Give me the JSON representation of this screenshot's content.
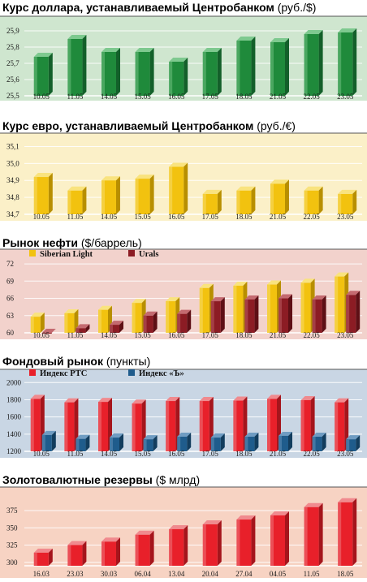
{
  "chart_data": [
    {
      "type": "bar",
      "title": "Курс доллара, устанавливаемый Центробанком",
      "unit": "(руб./$)",
      "categories": [
        "10.05",
        "11.05",
        "14.05",
        "15.05",
        "16.05",
        "17.05",
        "18.05",
        "21.05",
        "22.05",
        "23.05"
      ],
      "yticks": [
        "25,5",
        "25,6",
        "25,7",
        "25,8",
        "25,9"
      ],
      "ylim": [
        25.5,
        25.95
      ],
      "series": [
        {
          "values": [
            25.74,
            25.85,
            25.77,
            25.77,
            25.71,
            25.77,
            25.84,
            25.83,
            25.88,
            25.89
          ],
          "color": "#1f8a3b",
          "light": "#7ec98f",
          "dark": "#13602a"
        }
      ],
      "background": "#cfe6cf",
      "grid": true
    },
    {
      "type": "bar",
      "title": "Курс евро, устанавливаемый Центробанком",
      "unit": "(руб./€)",
      "categories": [
        "10.05",
        "11.05",
        "14.05",
        "15.05",
        "16.05",
        "17.05",
        "18.05",
        "21.05",
        "22.05",
        "23.05"
      ],
      "yticks": [
        "34,7",
        "34,8",
        "34,9",
        "35,0",
        "35,1"
      ],
      "ylim": [
        34.7,
        35.15
      ],
      "series": [
        {
          "values": [
            34.92,
            34.84,
            34.9,
            34.91,
            34.98,
            34.82,
            34.84,
            34.88,
            34.84,
            34.82
          ],
          "color": "#f2c20f",
          "light": "#f9e37e",
          "dark": "#b88f00"
        }
      ],
      "background": "#fbf0c8",
      "grid": true
    },
    {
      "type": "bar",
      "title": "Рынок нефти",
      "unit": "($/баррель)",
      "categories": [
        "10.05",
        "11.05",
        "14.05",
        "15.05",
        "16.05",
        "17.05",
        "18.05",
        "21.05",
        "22.05",
        "23.05"
      ],
      "yticks": [
        "60",
        "63",
        "66",
        "69",
        "72"
      ],
      "ylim": [
        60,
        73
      ],
      "series": [
        {
          "name": "Siberian Light",
          "values": [
            62.8,
            63.4,
            64.0,
            65.2,
            65.5,
            67.8,
            68.2,
            68.4,
            68.7,
            69.8
          ],
          "color": "#f2c20f",
          "light": "#f9e37e",
          "dark": "#b88f00"
        },
        {
          "name": "Urals",
          "values": [
            60.0,
            60.8,
            61.4,
            63.0,
            63.3,
            65.5,
            65.8,
            66.0,
            65.8,
            66.6
          ],
          "color": "#8c1c24",
          "light": "#c46a70",
          "dark": "#5e0f15"
        }
      ],
      "background": "#f2d2cc",
      "legend": "top-left",
      "grid": true
    },
    {
      "type": "bar",
      "title": "Фондовый рынок",
      "unit": "(пункты)",
      "categories": [
        "10.05",
        "11.05",
        "14.05",
        "15.05",
        "16.05",
        "17.05",
        "18.05",
        "21.05",
        "22.05",
        "23.05"
      ],
      "yticks": [
        "1200",
        "1400",
        "1600",
        "1800",
        "2000"
      ],
      "ylim": [
        1200,
        2050
      ],
      "series": [
        {
          "name": "Индекс РТС",
          "values": [
            1810,
            1770,
            1775,
            1755,
            1785,
            1785,
            1790,
            1810,
            1795,
            1770
          ],
          "color": "#e8202a",
          "light": "#f08a8e",
          "dark": "#a5151c"
        },
        {
          "name": "Индекс «Ъ»",
          "values": [
            1390,
            1345,
            1360,
            1340,
            1370,
            1360,
            1370,
            1380,
            1370,
            1340
          ],
          "color": "#1f5c8c",
          "light": "#6f9cc2",
          "dark": "#123d5e"
        }
      ],
      "background": "#c9d6e4",
      "legend": "top-left",
      "grid": true
    },
    {
      "type": "bar",
      "title": "Золотовалютные резервы",
      "unit": "($ млрд)",
      "categories": [
        "16.03",
        "23.03",
        "30.03",
        "06.04",
        "13.04",
        "20.04",
        "27.04",
        "04.05",
        "11.05",
        "18.05"
      ],
      "yticks": [
        "300",
        "325",
        "350",
        "375"
      ],
      "ylim": [
        295,
        395
      ],
      "series": [
        {
          "values": [
            314,
            325,
            330,
            340,
            348,
            355,
            362,
            368,
            380,
            387
          ],
          "color": "#e8202a",
          "light": "#f08a8e",
          "dark": "#a5151c"
        }
      ],
      "background": "#f7d3c3",
      "grid": true
    }
  ]
}
